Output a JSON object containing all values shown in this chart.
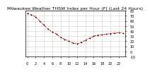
{
  "title": "Milwaukee Weather THSW Index per Hour (F) (Last 24 Hours)",
  "hours": [
    0,
    1,
    2,
    3,
    4,
    5,
    6,
    7,
    8,
    9,
    10,
    11,
    12,
    13,
    14,
    15,
    16,
    17,
    18,
    19,
    20,
    21,
    22,
    23
  ],
  "values": [
    75,
    72,
    68,
    60,
    52,
    44,
    38,
    34,
    28,
    24,
    20,
    17,
    15,
    18,
    22,
    26,
    30,
    32,
    33,
    34,
    35,
    36,
    37,
    36
  ],
  "line_color": "#cc0000",
  "marker_color": "#000000",
  "bg_color": "#ffffff",
  "plot_bg": "#ffffff",
  "grid_color": "#888888",
  "tick_color": "#000000",
  "title_color": "#000000",
  "ylim": [
    -10,
    80
  ],
  "yticks": [
    -10,
    0,
    10,
    20,
    30,
    40,
    50,
    60,
    70,
    80
  ],
  "title_fontsize": 4.5,
  "tick_fontsize": 3.5,
  "xlabel_fontsize": 3.5
}
